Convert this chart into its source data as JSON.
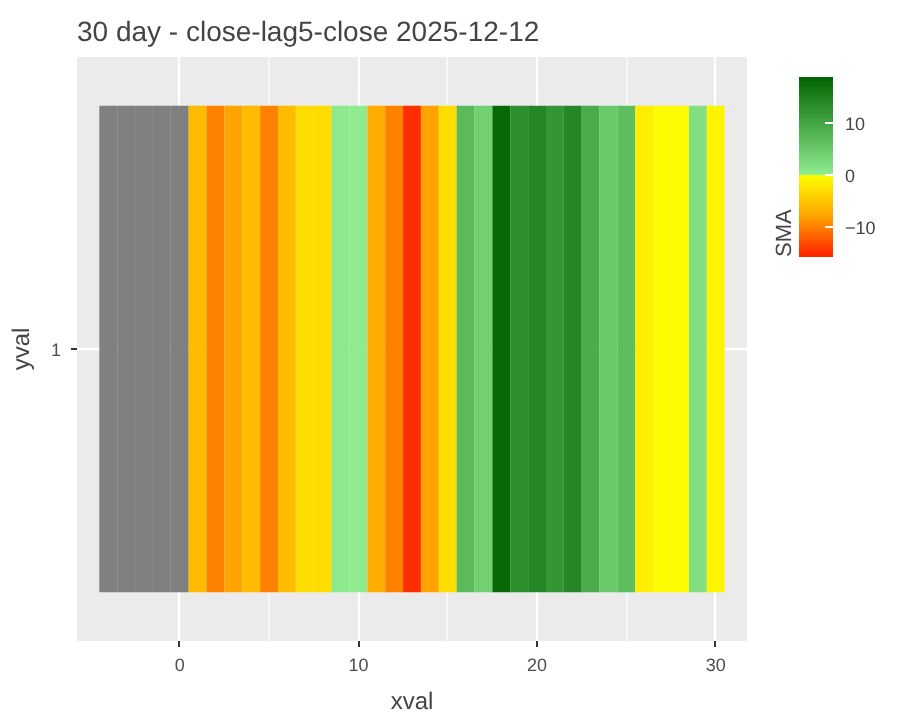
{
  "chart_data": {
    "type": "heatmap",
    "title": "30 day - close-lag5-close  2025-12-12",
    "xlabel": "xval",
    "ylabel": "yval",
    "clabel": "SMA",
    "x": [
      -4,
      -3,
      -2,
      -1,
      0,
      1,
      2,
      3,
      4,
      5,
      6,
      7,
      8,
      9,
      10,
      11,
      12,
      13,
      14,
      15,
      16,
      17,
      18,
      19,
      20,
      21,
      22,
      23,
      24,
      25,
      26,
      27,
      28,
      29,
      30
    ],
    "y_categories": [
      "1"
    ],
    "cells": [
      [
        null,
        null,
        null,
        null,
        null,
        -6,
        -10,
        -8,
        -6,
        -10,
        -6,
        -3,
        -3,
        0.5,
        0.2,
        -7,
        -10,
        -15,
        -8,
        -3,
        7,
        4,
        18,
        13,
        14,
        12,
        14,
        9,
        5,
        6.5,
        -1.5,
        -0.3,
        -0.3,
        2,
        -1
      ]
    ],
    "xlim": [
      -5.75,
      31.75
    ],
    "xticks": [
      0,
      10,
      20,
      30
    ],
    "clim": [
      -15.7,
      18.7
    ],
    "cticks": [
      -10,
      0,
      10
    ],
    "grid": true
  }
}
